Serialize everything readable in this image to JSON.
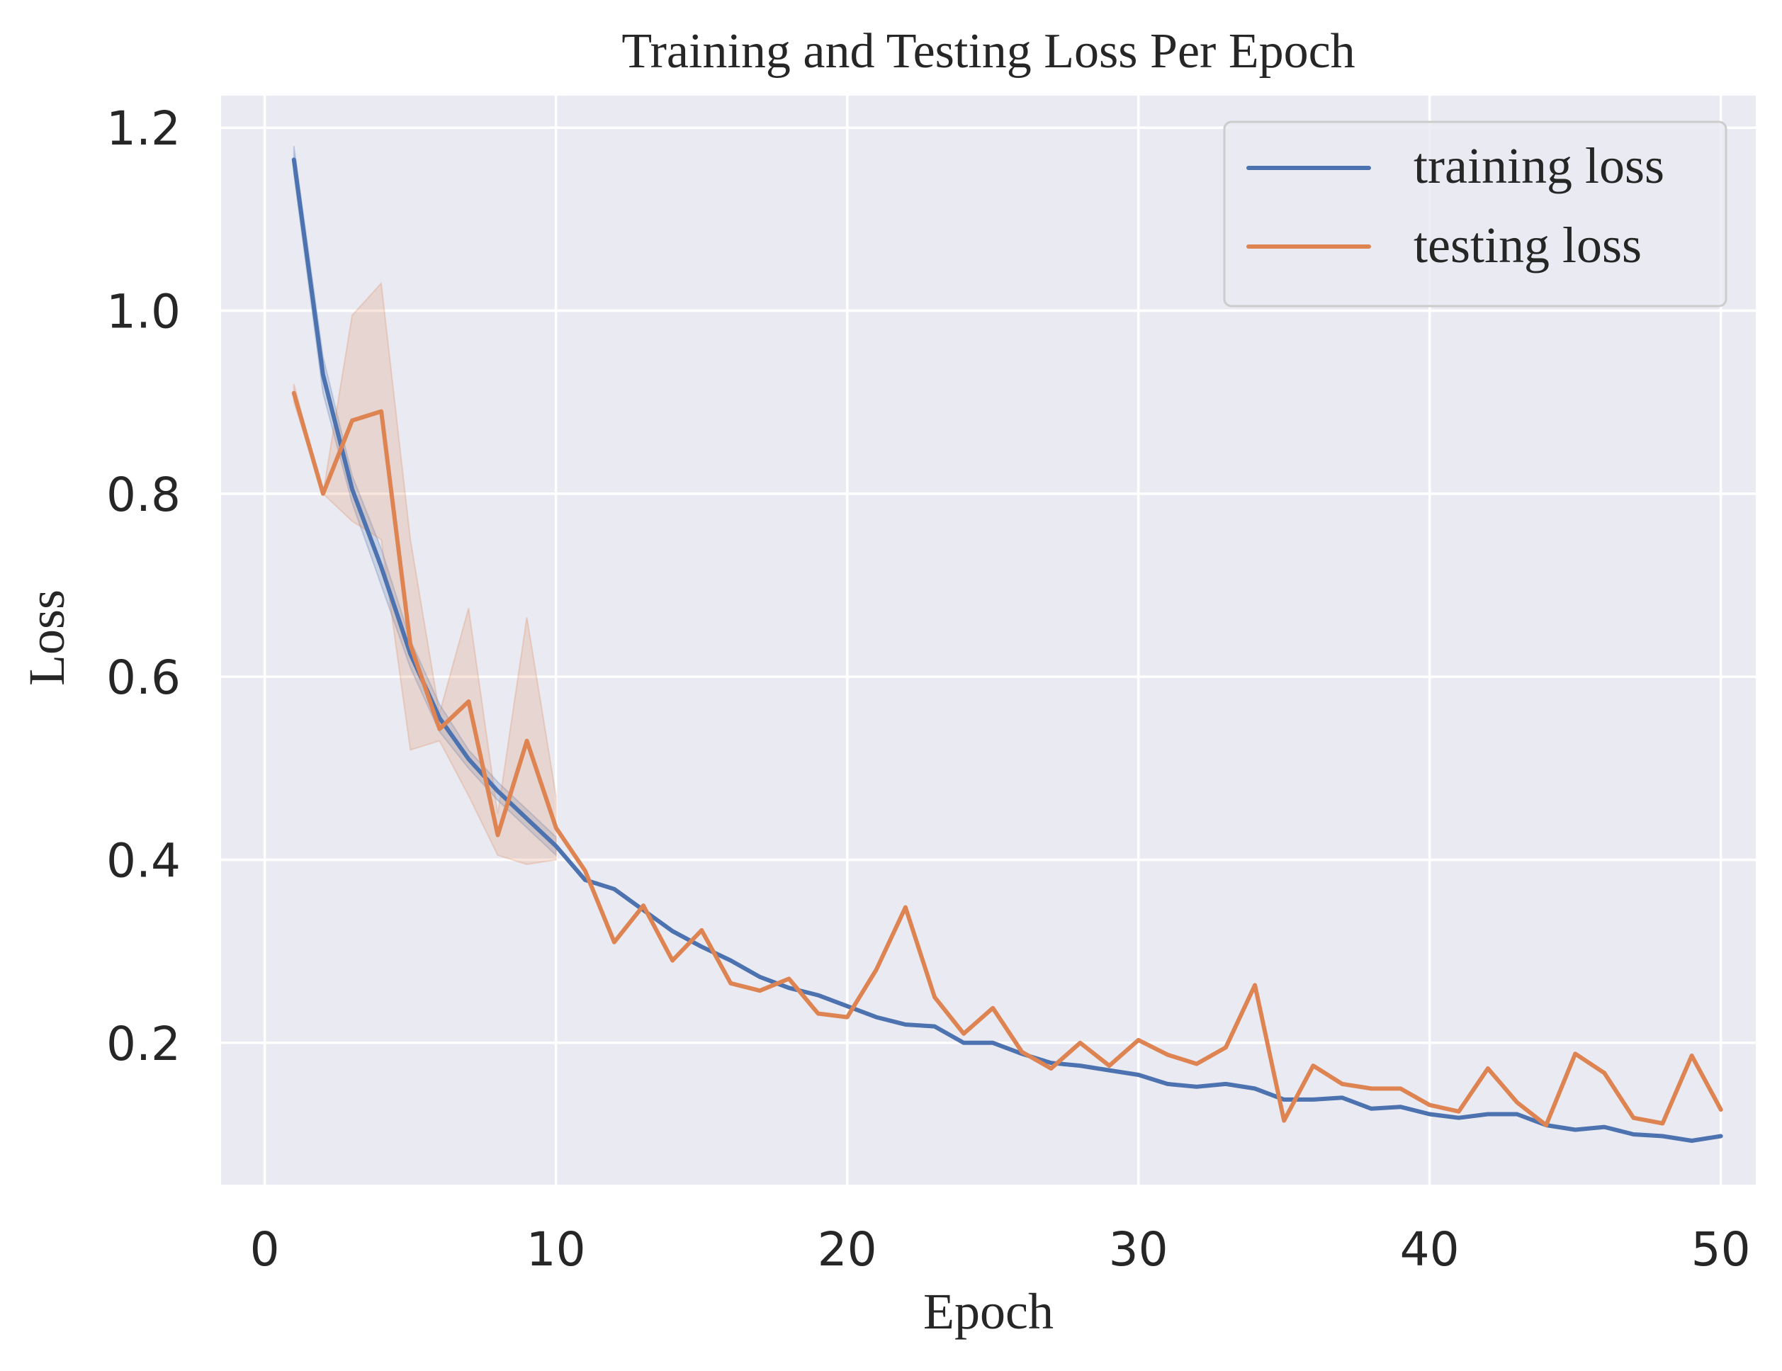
{
  "chart_data": {
    "type": "line",
    "title": "Training and Testing Loss Per Epoch",
    "xlabel": "Epoch",
    "ylabel": "Loss",
    "xlim": [
      -1.5,
      51.2
    ],
    "ylim": [
      0.045,
      1.235
    ],
    "xticks": [
      0,
      10,
      20,
      30,
      40,
      50
    ],
    "xtick_labels": [
      "0",
      "10",
      "20",
      "30",
      "40",
      "50"
    ],
    "yticks": [
      0.2,
      0.4,
      0.6,
      0.8,
      1.0,
      1.2
    ],
    "ytick_labels": [
      "0.2",
      "0.4",
      "0.6",
      "0.8",
      "1.0",
      "1.2"
    ],
    "grid": true,
    "legend_position": "top-right",
    "x": [
      1,
      2,
      3,
      4,
      5,
      6,
      7,
      8,
      9,
      10,
      11,
      12,
      13,
      14,
      15,
      16,
      17,
      18,
      19,
      20,
      21,
      22,
      23,
      24,
      25,
      26,
      27,
      28,
      29,
      30,
      31,
      32,
      33,
      34,
      35,
      36,
      37,
      38,
      39,
      40,
      41,
      42,
      43,
      44,
      45,
      46,
      47,
      48,
      49,
      50
    ],
    "series": [
      {
        "name": "training loss",
        "color": "#4c72b0",
        "values": [
          1.165,
          0.93,
          0.805,
          0.72,
          0.625,
          0.555,
          0.51,
          0.475,
          0.445,
          0.415,
          0.378,
          0.368,
          0.345,
          0.322,
          0.305,
          0.29,
          0.272,
          0.26,
          0.252,
          0.24,
          0.228,
          0.22,
          0.218,
          0.2,
          0.2,
          0.188,
          0.178,
          0.175,
          0.17,
          0.165,
          0.155,
          0.152,
          0.155,
          0.15,
          0.138,
          0.138,
          0.14,
          0.128,
          0.13,
          0.122,
          0.118,
          0.122,
          0.122,
          0.11,
          0.105,
          0.108,
          0.1,
          0.098,
          0.093,
          0.098
        ],
        "band_lower": [
          1.15,
          0.91,
          0.79,
          0.7,
          0.61,
          0.54,
          0.5,
          0.465,
          0.435,
          0.405
        ],
        "band_upper": [
          1.18,
          0.95,
          0.82,
          0.74,
          0.64,
          0.57,
          0.52,
          0.485,
          0.455,
          0.425
        ]
      },
      {
        "name": "testing loss",
        "color": "#dd8452",
        "values": [
          0.91,
          0.8,
          0.88,
          0.89,
          0.635,
          0.543,
          0.573,
          0.427,
          0.53,
          0.435,
          0.388,
          0.31,
          0.35,
          0.29,
          0.323,
          0.265,
          0.257,
          0.27,
          0.232,
          0.228,
          0.28,
          0.348,
          0.25,
          0.21,
          0.238,
          0.19,
          0.172,
          0.2,
          0.175,
          0.203,
          0.187,
          0.177,
          0.195,
          0.263,
          0.115,
          0.175,
          0.155,
          0.15,
          0.15,
          0.132,
          0.125,
          0.172,
          0.135,
          0.11,
          0.188,
          0.167,
          0.118,
          0.112,
          0.186,
          0.127
        ],
        "band_lower": [
          0.9,
          0.8,
          0.77,
          0.75,
          0.52,
          0.53,
          0.47,
          0.405,
          0.395,
          0.4
        ],
        "band_upper": [
          0.92,
          0.8,
          0.995,
          1.03,
          0.75,
          0.56,
          0.675,
          0.45,
          0.665,
          0.47
        ]
      }
    ]
  }
}
